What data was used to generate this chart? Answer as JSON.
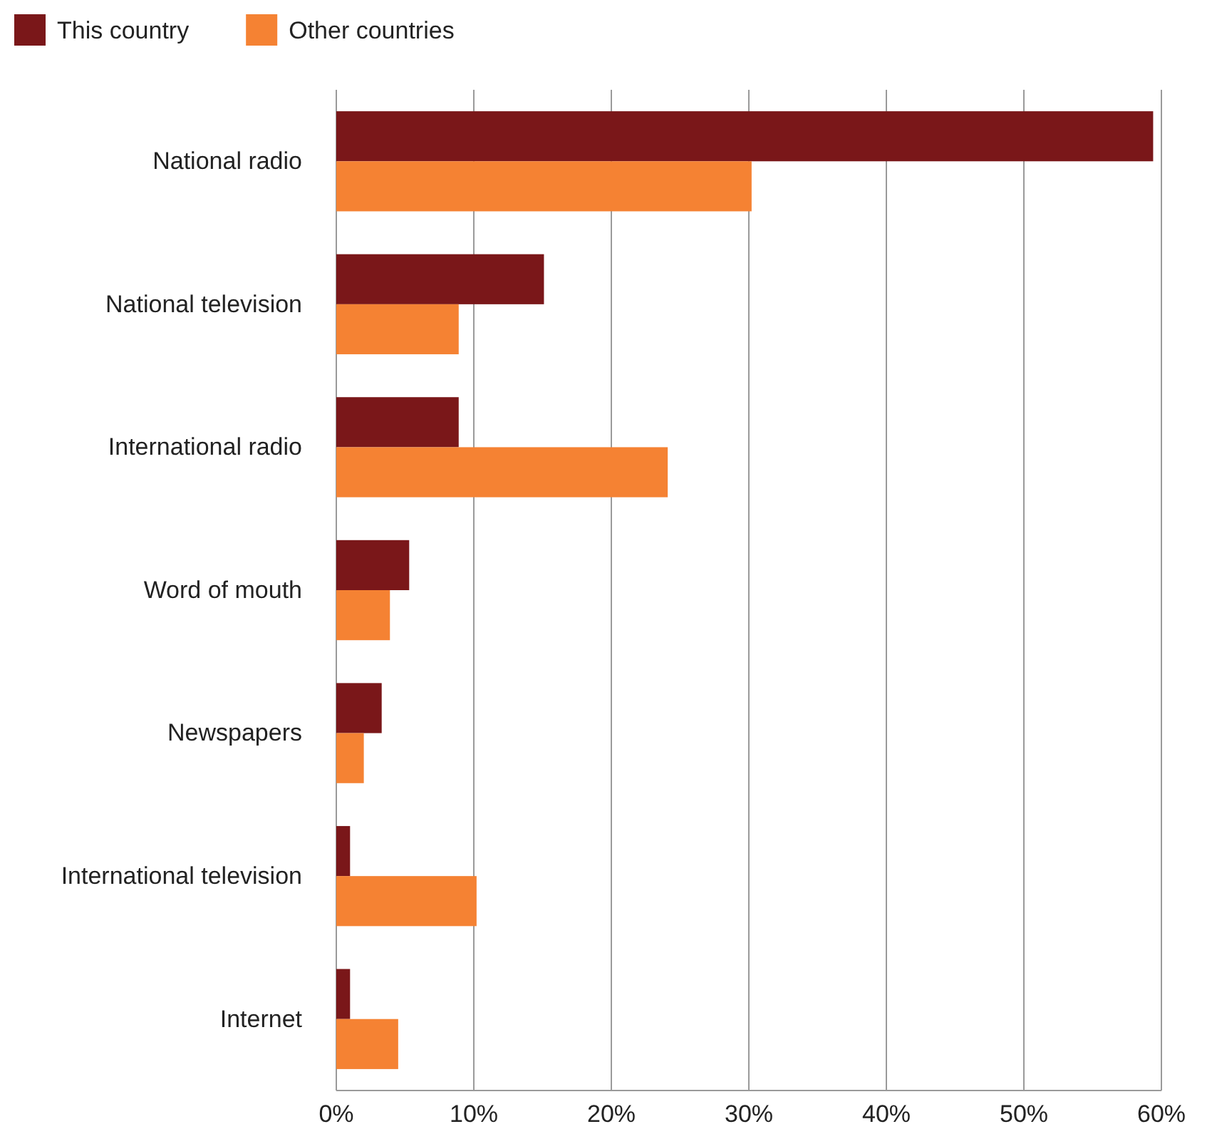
{
  "chart_data": {
    "type": "bar",
    "orientation": "horizontal",
    "categories": [
      "National radio",
      "National television",
      "International radio",
      "Word of mouth",
      "Newspapers",
      "International television",
      "Internet"
    ],
    "series": [
      {
        "name": "This country",
        "color": "#7a1719",
        "values": [
          59.4,
          15.1,
          8.9,
          5.3,
          3.3,
          1.0,
          1.0
        ]
      },
      {
        "name": "Other countries",
        "color": "#f58233",
        "values": [
          30.2,
          8.9,
          24.1,
          3.9,
          2.0,
          10.2,
          4.5
        ]
      }
    ],
    "xlim": [
      0,
      60
    ],
    "xticks": [
      {
        "value": 0,
        "label": "0%"
      },
      {
        "value": 10,
        "label": "10%"
      },
      {
        "value": 20,
        "label": "20%"
      },
      {
        "value": 30,
        "label": "30%"
      },
      {
        "value": 40,
        "label": "40%"
      },
      {
        "value": 50,
        "label": "50%"
      },
      {
        "value": 60,
        "label": "60%"
      }
    ],
    "grid": "x",
    "legend": "top left"
  }
}
